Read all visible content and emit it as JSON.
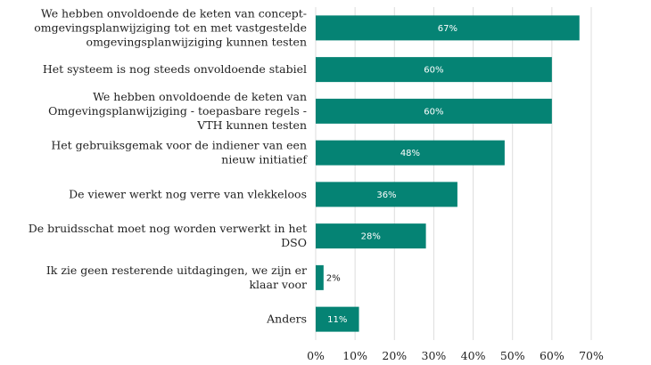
{
  "chart_data": {
    "type": "bar",
    "orientation": "horizontal",
    "categories": [
      [
        "We hebben onvoldoende de keten van concept-",
        "omgevingsplanwijziging tot en met vastgestelde",
        "omgevingsplanwijziging kunnen testen"
      ],
      [
        "Het systeem is nog steeds onvoldoende stabiel"
      ],
      [
        "We hebben onvoldoende de keten van",
        "Omgevingsplanwijziging - toepasbare regels -",
        "VTH kunnen testen"
      ],
      [
        "Het gebruiksgemak voor de indiener van een",
        "nieuw initiatief"
      ],
      [
        "De viewer werkt nog verre van vlekkeloos"
      ],
      [
        "De bruidsschat moet nog worden verwerkt in het",
        "DSO"
      ],
      [
        "Ik zie geen resterende uitdagingen, we zijn er",
        "klaar voor"
      ],
      [
        "Anders"
      ]
    ],
    "values": [
      67,
      60,
      60,
      48,
      36,
      28,
      2,
      11
    ],
    "data_labels": [
      "67%",
      "60%",
      "60%",
      "48%",
      "36%",
      "28%",
      "2%",
      "11%"
    ],
    "xlim": [
      0,
      70
    ],
    "xticks": [
      0,
      10,
      20,
      30,
      40,
      50,
      60,
      70
    ],
    "xtick_labels": [
      "0%",
      "10%",
      "20%",
      "30%",
      "40%",
      "50%",
      "60%",
      "70%"
    ],
    "grid": "vertical",
    "bar_color": "#058374",
    "grid_color": "#dddddd",
    "title": "",
    "xlabel": "",
    "ylabel": ""
  }
}
